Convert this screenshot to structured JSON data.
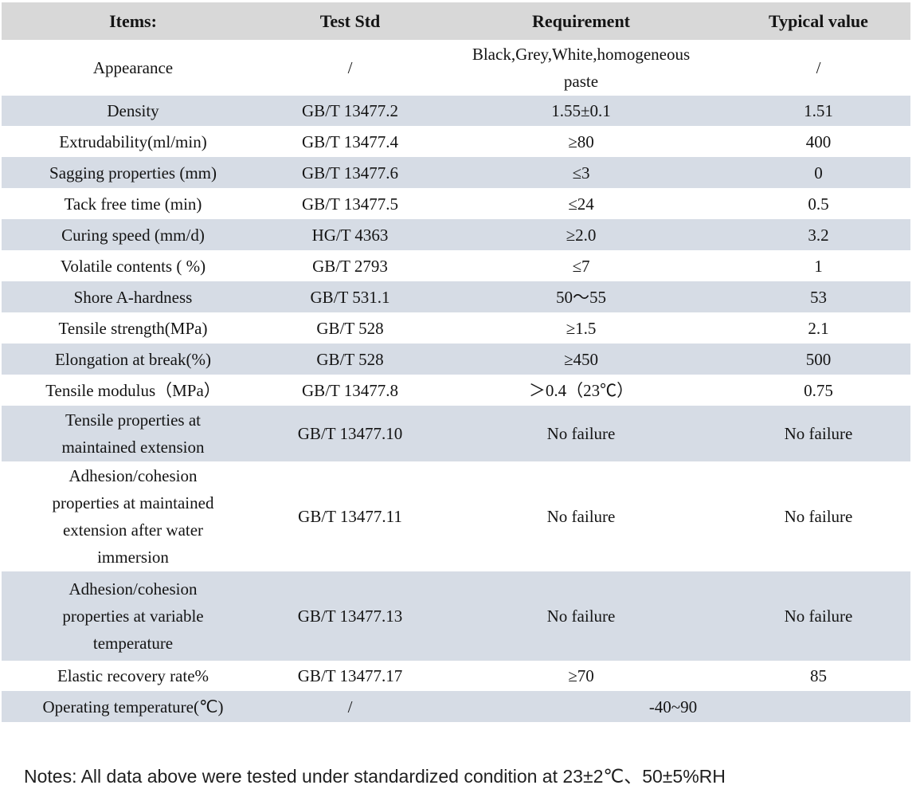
{
  "table": {
    "columns": [
      "Items:",
      "Test Std",
      "Requirement",
      "Typical value"
    ],
    "rows": [
      {
        "item": "Appearance",
        "test_std": "/",
        "requirement": "Black,Grey,White,homogeneous paste",
        "typical_value": "/"
      },
      {
        "item": "Density",
        "test_std": "GB/T 13477.2",
        "requirement": "1.55±0.1",
        "typical_value": "1.51"
      },
      {
        "item": "Extrudability(ml/min)",
        "test_std": "GB/T 13477.4",
        "requirement": "≥80",
        "typical_value": "400"
      },
      {
        "item": "Sagging properties (mm)",
        "test_std": "GB/T 13477.6",
        "requirement": "≤3",
        "typical_value": "0"
      },
      {
        "item": "Tack free time (min)",
        "test_std": "GB/T 13477.5",
        "requirement": "≤24",
        "typical_value": "0.5"
      },
      {
        "item": "Curing speed (mm/d)",
        "test_std": "HG/T 4363",
        "requirement": "≥2.0",
        "typical_value": "3.2"
      },
      {
        "item": "Volatile contents ( %)",
        "test_std": "GB/T 2793",
        "requirement": "≤7",
        "typical_value": "1"
      },
      {
        "item": "Shore A-hardness",
        "test_std": "GB/T 531.1",
        "requirement": "50～55",
        "typical_value": "53"
      },
      {
        "item": "Tensile strength(MPa)",
        "test_std": "GB/T 528",
        "requirement": "≥1.5",
        "typical_value": "2.1"
      },
      {
        "item": "Elongation at break(%)",
        "test_std": "GB/T 528",
        "requirement": "≥450",
        "typical_value": "500"
      },
      {
        "item": "Tensile modulus（MPa）",
        "test_std": "GB/T 13477.8",
        "requirement": "＞0.4（23℃）",
        "typical_value": "0.75"
      },
      {
        "item": "Tensile properties at maintained extension",
        "test_std": "GB/T 13477.10",
        "requirement": "No failure",
        "typical_value": "No failure"
      },
      {
        "item": "Adhesion/cohesion properties at maintained extension after water immersion",
        "test_std": "GB/T 13477.11",
        "requirement": "No failure",
        "typical_value": "No failure"
      },
      {
        "item": "Adhesion/cohesion properties at variable temperature",
        "test_std": "GB/T 13477.13",
        "requirement": "No failure",
        "typical_value": "No failure"
      },
      {
        "item": "Elastic recovery rate%",
        "test_std": "GB/T 13477.17",
        "requirement": "≥70",
        "typical_value": "85"
      },
      {
        "item": "Operating temperature(℃)",
        "test_std": "/",
        "requirement": "-40~90"
      }
    ]
  },
  "notes": {
    "text": "Notes: All data above were tested under standardized condition at 23±2℃、50±5%RH"
  },
  "colors": {
    "header_bg": "#d8d8d8",
    "stripe_bg": "#d6dce5",
    "row_bg": "#ffffff",
    "text": "#141414"
  }
}
